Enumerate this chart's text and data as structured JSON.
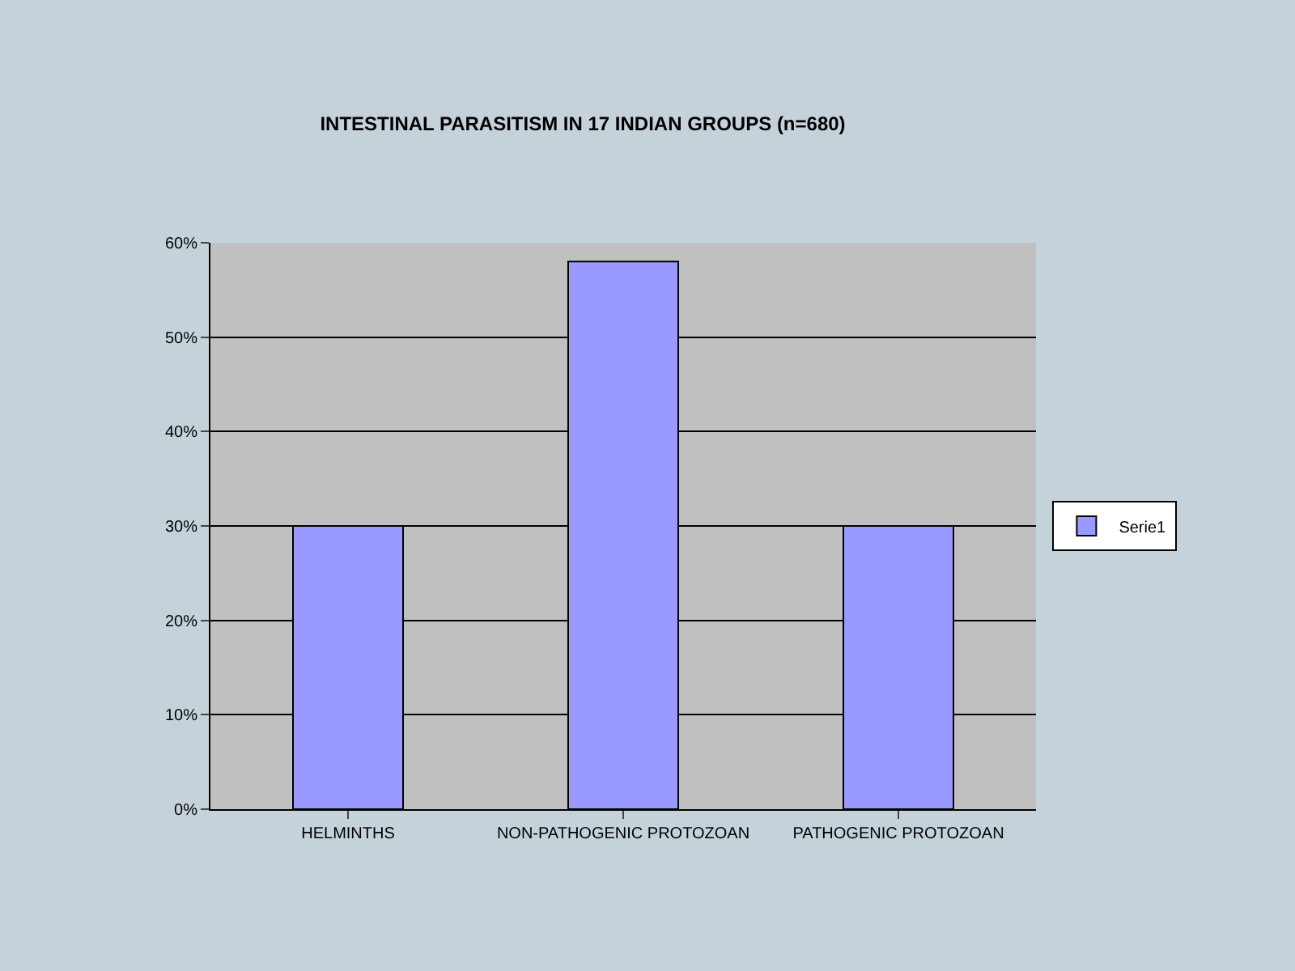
{
  "chart_data": {
    "type": "bar",
    "title": "INTESTINAL PARASITISM IN 17 INDIAN GROUPS (n=680)",
    "categories": [
      "HELMINTHS",
      "NON-PATHOGENIC PROTOZOAN",
      "PATHOGENIC PROTOZOAN"
    ],
    "series": [
      {
        "name": "Serie1",
        "color": "#9999ff",
        "values": [
          30,
          58,
          30
        ]
      }
    ],
    "ylim": [
      0,
      60
    ],
    "yticks": [
      {
        "value": 0,
        "label": "0%"
      },
      {
        "value": 10,
        "label": "10%"
      },
      {
        "value": 20,
        "label": "20%"
      },
      {
        "value": 30,
        "label": "30%"
      },
      {
        "value": 40,
        "label": "40%"
      },
      {
        "value": 50,
        "label": "50%"
      },
      {
        "value": 60,
        "label": "60%"
      }
    ],
    "grid": "y",
    "legend": "right"
  }
}
